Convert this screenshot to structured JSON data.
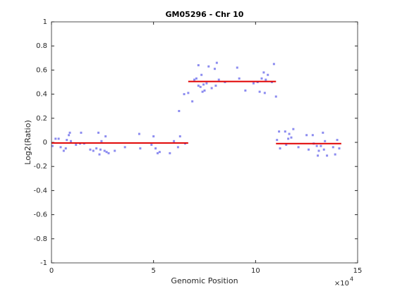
{
  "chart_data": {
    "type": "scatter",
    "title": "GM05296 - Chr 10",
    "xlabel": "Genomic Position",
    "ylabel": "Log2(Ratio)",
    "x_multiplier": {
      "base": "×10",
      "exponent": "4"
    },
    "xlim": [
      0,
      15
    ],
    "xticks": [
      0,
      5,
      10,
      15
    ],
    "ylim": [
      -1,
      1
    ],
    "yticks": [
      -1,
      -0.8,
      -0.6,
      -0.4,
      -0.2,
      0,
      0.2,
      0.4,
      0.6,
      0.8,
      1
    ],
    "grid": false,
    "series": [
      {
        "color": "#8c8cf0",
        "x": [
          0.05,
          0.2,
          0.35,
          0.45,
          0.6,
          0.7,
          0.75,
          0.85,
          0.9,
          0.95,
          1.2,
          1.4,
          1.45,
          1.6,
          1.9,
          2.05,
          2.2,
          2.3,
          2.35,
          2.4,
          2.45,
          2.6,
          2.65,
          2.7,
          2.8,
          3.1,
          3.6,
          4.3,
          4.35,
          4.9,
          5.0,
          5.1,
          5.2,
          5.3,
          5.8,
          6.0,
          6.2,
          6.3,
          6.55,
          6.25,
          6.5,
          6.7,
          6.9,
          7.0,
          7.1,
          7.2,
          7.2,
          7.3,
          7.35,
          7.4,
          7.45,
          7.5,
          7.6,
          7.7,
          7.85,
          8.0,
          8.05,
          8.1,
          8.2,
          8.5,
          9.1,
          9.2,
          9.5,
          9.9,
          10.1,
          10.2,
          10.3,
          10.4,
          10.45,
          10.5,
          10.6,
          10.8,
          10.9,
          11.0,
          11.05,
          11.15,
          11.2,
          11.45,
          11.5,
          11.6,
          11.65,
          11.75,
          11.85,
          12.1,
          12.5,
          12.6,
          12.8,
          12.85,
          13.0,
          13.05,
          13.1,
          13.2,
          13.3,
          13.35,
          13.4,
          13.5,
          13.8,
          13.9,
          14.0,
          14.1
        ],
        "values": [
          -0.03,
          0.03,
          0.03,
          -0.04,
          -0.07,
          -0.05,
          0.02,
          0.06,
          0.08,
          0.01,
          -0.02,
          -0.01,
          0.08,
          -0.01,
          -0.06,
          -0.07,
          -0.05,
          0.08,
          -0.1,
          -0.06,
          0.01,
          -0.07,
          0.05,
          -0.08,
          -0.09,
          -0.07,
          -0.04,
          0.07,
          -0.05,
          -0.02,
          0.05,
          -0.05,
          -0.09,
          -0.08,
          -0.09,
          0.01,
          -0.04,
          0.05,
          -0.01,
          0.26,
          0.4,
          0.41,
          0.34,
          0.52,
          0.53,
          0.47,
          0.64,
          0.46,
          0.56,
          0.42,
          0.48,
          0.43,
          0.49,
          0.63,
          0.45,
          0.61,
          0.47,
          0.66,
          0.52,
          0.5,
          0.62,
          0.53,
          0.43,
          0.49,
          0.5,
          0.42,
          0.53,
          0.58,
          0.41,
          0.52,
          0.56,
          0.5,
          0.65,
          0.38,
          0.02,
          0.09,
          -0.05,
          0.09,
          -0.02,
          0.03,
          0.07,
          0.04,
          0.11,
          -0.04,
          0.06,
          -0.06,
          0.06,
          -0.01,
          -0.03,
          -0.11,
          -0.07,
          -0.03,
          0.08,
          -0.06,
          0.01,
          -0.11,
          -0.04,
          -0.1,
          0.02,
          -0.05
        ]
      }
    ],
    "segments_color": "#e00000",
    "segments": [
      {
        "x": [
          0,
          6.7
        ],
        "values": [
          -0.005,
          -0.005
        ]
      },
      {
        "x": [
          6.7,
          11.0
        ],
        "values": [
          0.505,
          0.505
        ]
      },
      {
        "x": [
          11.0,
          14.2
        ],
        "values": [
          -0.01,
          -0.01
        ]
      }
    ]
  }
}
